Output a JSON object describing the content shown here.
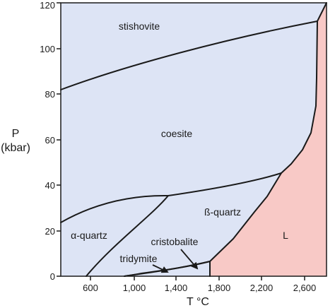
{
  "diagram": {
    "type": "phase-diagram",
    "x_axis": {
      "title": "T °C",
      "ticks": [
        "600",
        "1,000",
        "1,400",
        "1,800",
        "2,200",
        "2,600"
      ]
    },
    "y_axis": {
      "title_line1": "P",
      "title_line2": "(kbar)",
      "ticks": [
        "0",
        "20",
        "40",
        "60",
        "80",
        "100",
        "120"
      ]
    },
    "phases": {
      "stishovite": "stishovite",
      "coesite": "coesite",
      "alpha_quartz": "α-quartz",
      "beta_quartz": "ß-quartz",
      "cristobalite": "cristobalite",
      "tridymite": "tridymite",
      "liquid": "L"
    },
    "colors": {
      "solid_region": "#dde4f5",
      "liquid_region": "#f8c9c6",
      "lines": "#1a1a1a"
    }
  }
}
